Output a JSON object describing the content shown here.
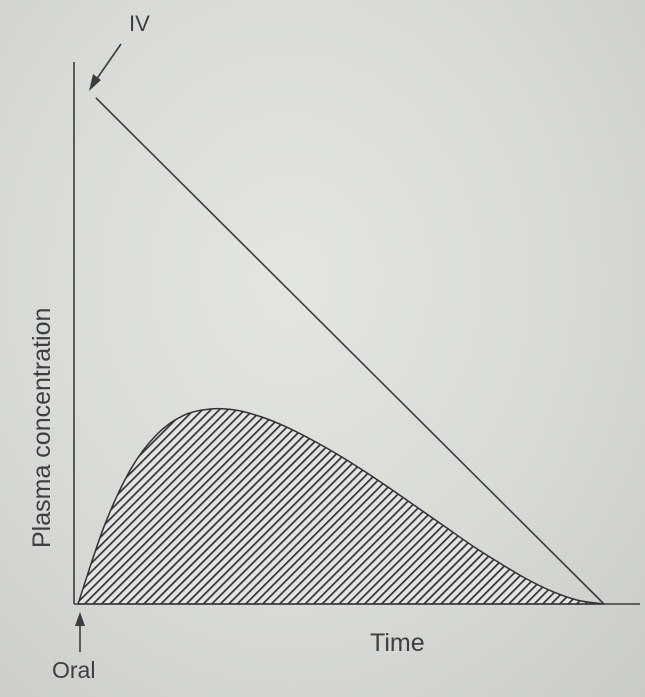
{
  "chart_data": {
    "type": "line",
    "title": "",
    "xlabel": "Time",
    "ylabel": "Plasma concentration",
    "xlim": [
      0,
      10
    ],
    "ylim": [
      0,
      10
    ],
    "grid": false,
    "legend": "none",
    "series": [
      {
        "name": "IV",
        "style": "line",
        "color": "#3a3c40",
        "x": [
          0.34,
          10
        ],
        "y": [
          9.4,
          0
        ]
      },
      {
        "name": "Oral",
        "style": "hatched-area",
        "color": "#2f3136",
        "x": [
          0,
          0.5,
          1.0,
          1.5,
          2.0,
          2.5,
          3.0,
          3.5,
          4.0,
          4.5,
          5.0,
          5.5,
          6.0,
          6.5,
          7.0,
          7.5,
          8.0,
          8.5,
          9.0,
          9.5,
          10.0
        ],
        "y": [
          0,
          1.45,
          2.5,
          3.15,
          3.5,
          3.62,
          3.6,
          3.47,
          3.27,
          3.02,
          2.74,
          2.43,
          2.1,
          1.76,
          1.42,
          1.08,
          0.77,
          0.48,
          0.24,
          0.07,
          0
        ]
      }
    ],
    "annotations": [
      {
        "text": "IV",
        "target_series": "IV",
        "arrow": "down-left"
      },
      {
        "text": "Oral",
        "target_series": "Oral",
        "arrow": "up"
      }
    ]
  }
}
